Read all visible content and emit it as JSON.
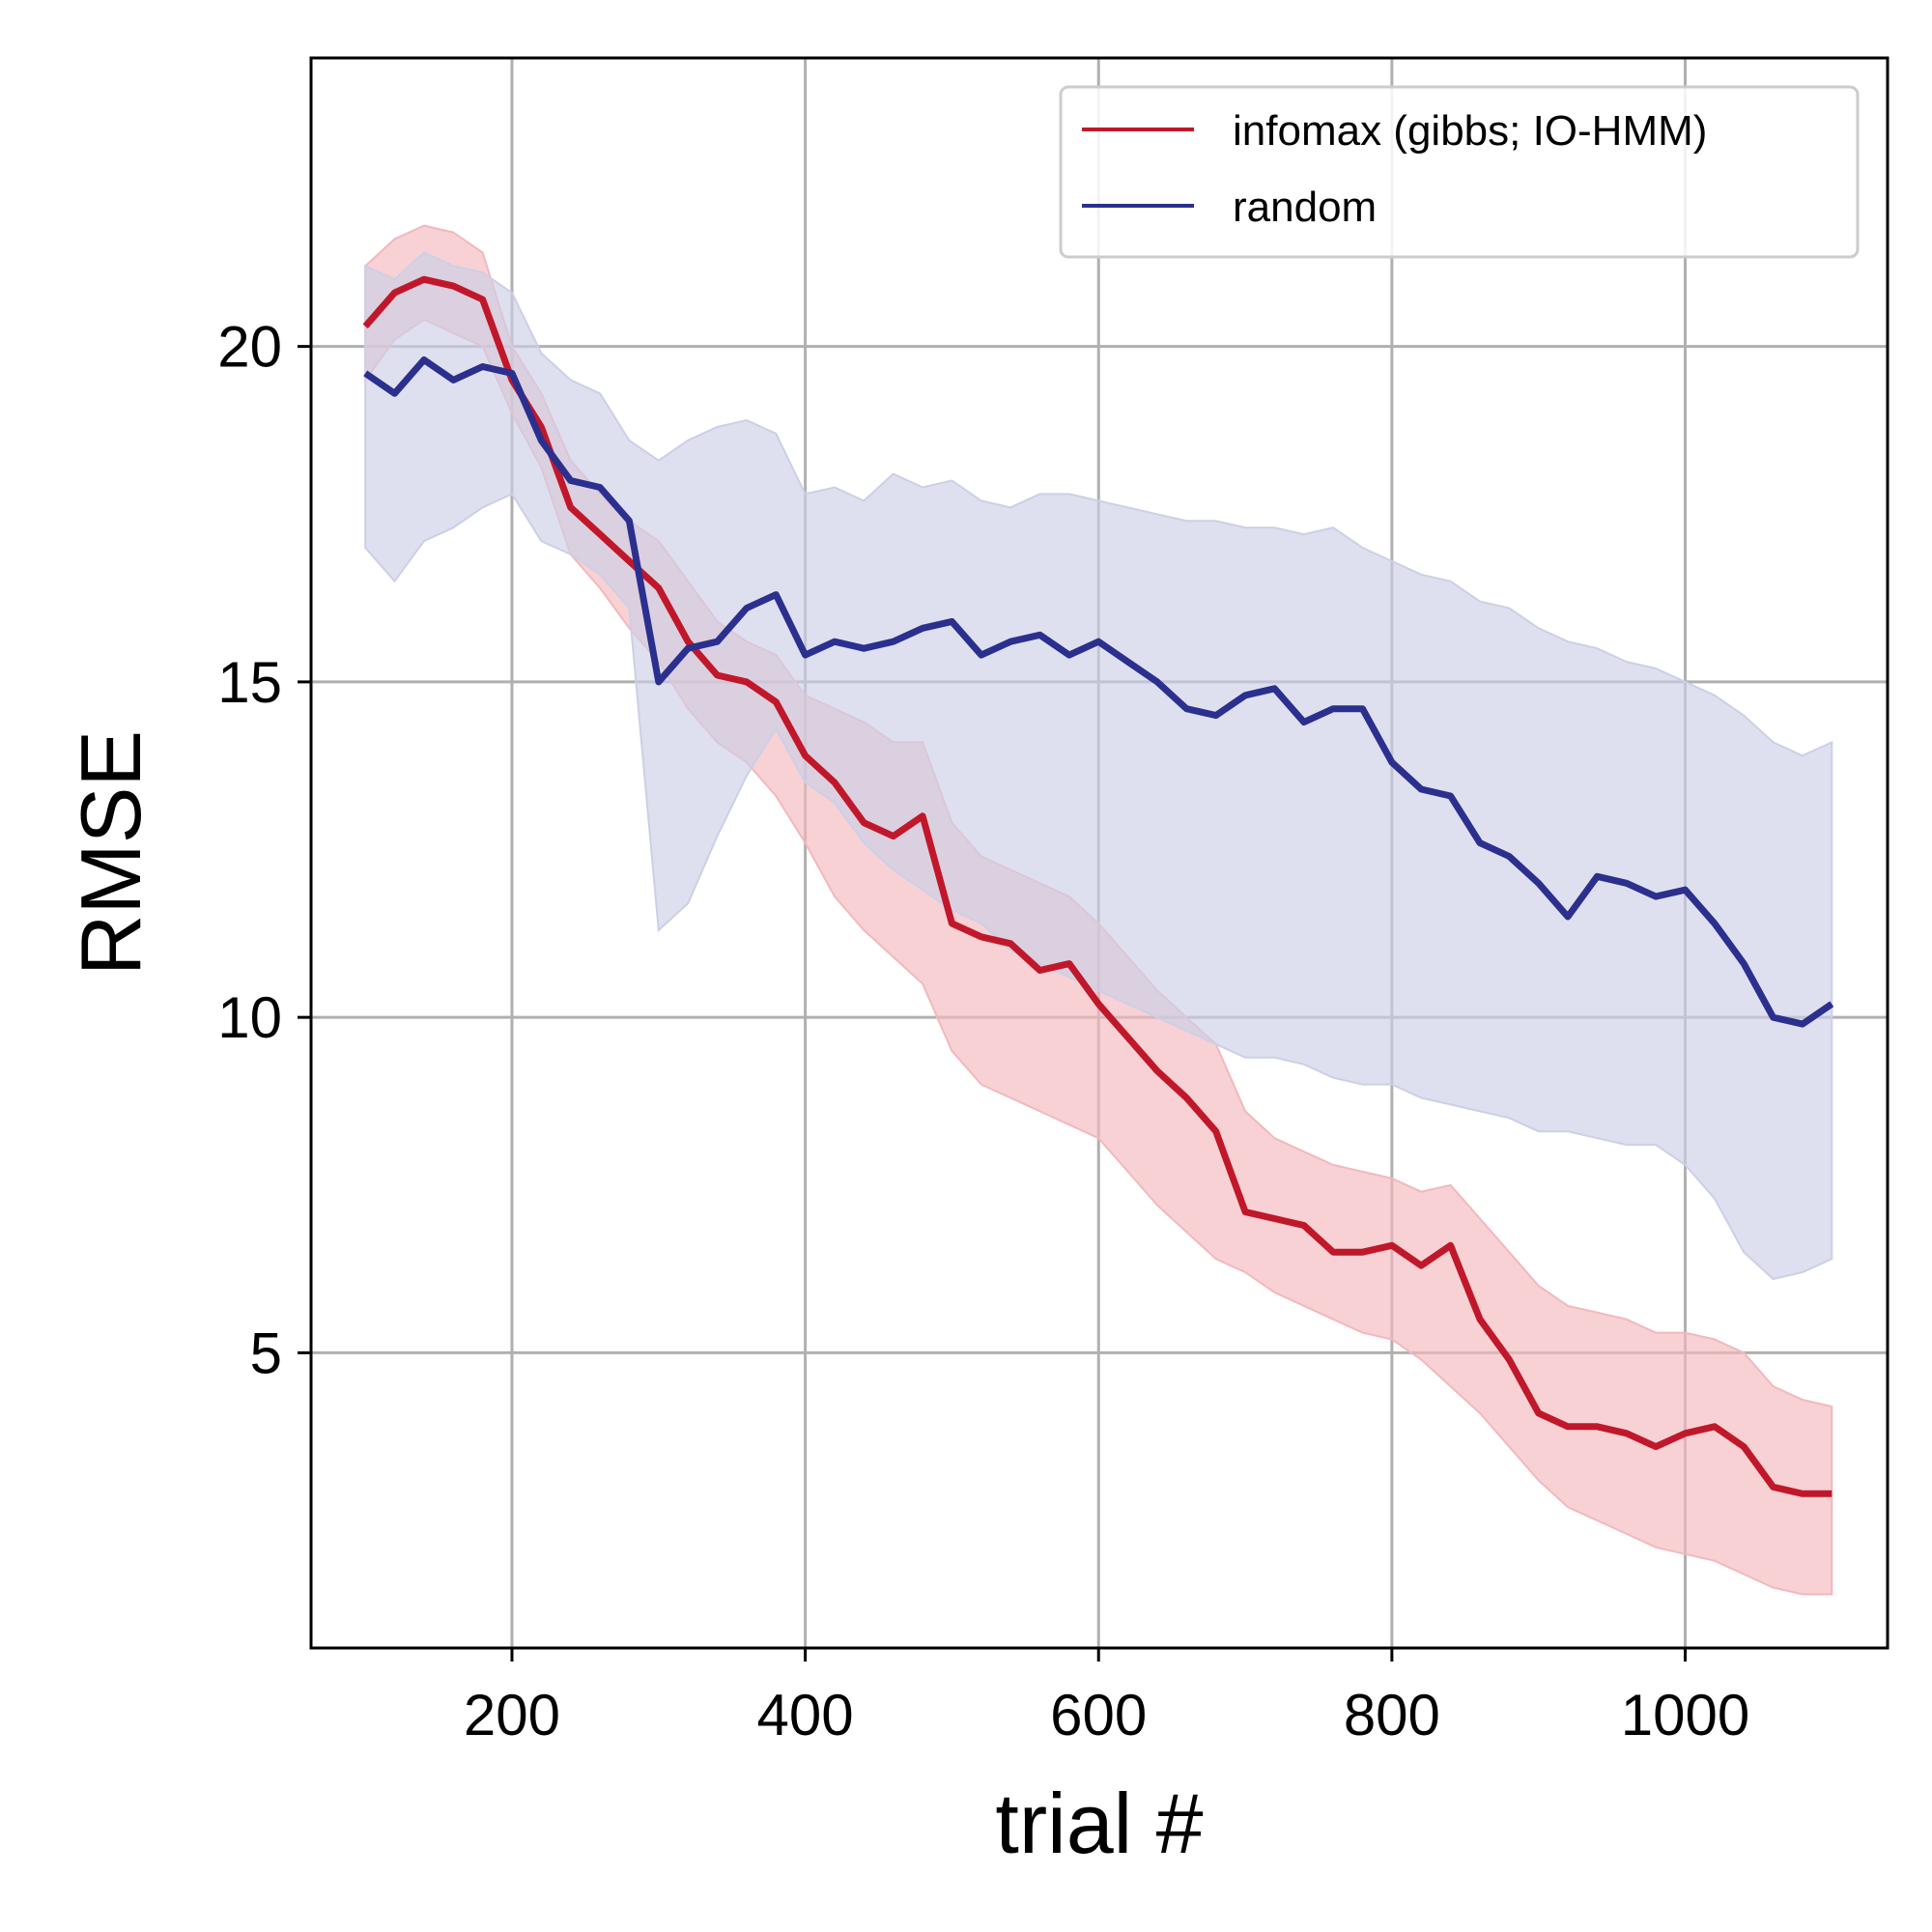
{
  "chart_data": {
    "type": "line",
    "title": "",
    "xlabel": "trial #",
    "ylabel": "RMSE",
    "xlim": [
      63,
      1138
    ],
    "ylim": [
      0.6,
      24.3
    ],
    "xticks": [
      200,
      400,
      600,
      800,
      1000
    ],
    "yticks": [
      5,
      10,
      15,
      20
    ],
    "grid": true,
    "legend_position": "top-right",
    "series": [
      {
        "name": "infomax (gibbs; IO-HMM)",
        "color": "#c0182a",
        "band_color": "#f2b8bd",
        "x": [
          100,
          120,
          140,
          160,
          180,
          200,
          220,
          240,
          260,
          280,
          300,
          320,
          340,
          360,
          380,
          400,
          420,
          440,
          460,
          480,
          500,
          520,
          540,
          560,
          580,
          600,
          620,
          640,
          660,
          680,
          700,
          720,
          740,
          760,
          780,
          800,
          820,
          840,
          860,
          880,
          900,
          920,
          940,
          960,
          980,
          1000,
          1020,
          1040,
          1060,
          1080,
          1100
        ],
        "mean": [
          20.3,
          20.8,
          21.0,
          20.9,
          20.7,
          19.5,
          18.8,
          17.6,
          17.2,
          16.8,
          16.4,
          15.6,
          15.1,
          15.0,
          14.7,
          13.9,
          13.5,
          12.9,
          12.7,
          13.0,
          11.4,
          11.2,
          11.1,
          10.7,
          10.8,
          10.2,
          9.7,
          9.2,
          8.8,
          8.3,
          7.1,
          7.0,
          6.9,
          6.5,
          6.5,
          6.6,
          6.3,
          6.6,
          5.5,
          4.9,
          4.1,
          3.9,
          3.9,
          3.8,
          3.6,
          3.8,
          3.9,
          3.6,
          3.0,
          2.9,
          2.9
        ],
        "lower": [
          19.5,
          20.1,
          20.4,
          20.2,
          20.0,
          19.0,
          18.2,
          16.9,
          16.4,
          15.8,
          15.3,
          14.6,
          14.1,
          13.8,
          13.3,
          12.6,
          11.8,
          11.3,
          10.9,
          10.5,
          9.5,
          9.0,
          8.8,
          8.6,
          8.4,
          8.2,
          7.7,
          7.2,
          6.8,
          6.4,
          6.2,
          5.9,
          5.7,
          5.5,
          5.3,
          5.2,
          4.9,
          4.5,
          4.1,
          3.6,
          3.1,
          2.7,
          2.5,
          2.3,
          2.1,
          2.0,
          1.9,
          1.7,
          1.5,
          1.4,
          1.4
        ],
        "upper": [
          21.2,
          21.6,
          21.8,
          21.7,
          21.4,
          20.0,
          19.3,
          18.3,
          17.8,
          17.4,
          17.1,
          16.5,
          15.9,
          15.6,
          15.4,
          14.8,
          14.6,
          14.4,
          14.1,
          14.1,
          12.9,
          12.4,
          12.2,
          12.0,
          11.8,
          11.4,
          10.9,
          10.4,
          10.0,
          9.6,
          8.6,
          8.2,
          8.0,
          7.8,
          7.7,
          7.6,
          7.4,
          7.5,
          7.0,
          6.5,
          6.0,
          5.7,
          5.6,
          5.5,
          5.3,
          5.3,
          5.2,
          5.0,
          4.5,
          4.3,
          4.2
        ]
      },
      {
        "name": "random",
        "color": "#2b2f8e",
        "band_color": "#cdcfe6",
        "x": [
          100,
          120,
          140,
          160,
          180,
          200,
          220,
          240,
          260,
          280,
          300,
          320,
          340,
          360,
          380,
          400,
          420,
          440,
          460,
          480,
          500,
          520,
          540,
          560,
          580,
          600,
          620,
          640,
          660,
          680,
          700,
          720,
          740,
          760,
          780,
          800,
          820,
          840,
          860,
          880,
          900,
          920,
          940,
          960,
          980,
          1000,
          1020,
          1040,
          1060,
          1080,
          1100
        ],
        "mean": [
          19.6,
          19.3,
          19.8,
          19.5,
          19.7,
          19.6,
          18.6,
          18.0,
          17.9,
          17.4,
          15.0,
          15.5,
          15.6,
          16.1,
          16.3,
          15.4,
          15.6,
          15.5,
          15.6,
          15.8,
          15.9,
          15.4,
          15.6,
          15.7,
          15.4,
          15.6,
          15.3,
          15.0,
          14.6,
          14.5,
          14.8,
          14.9,
          14.4,
          14.6,
          14.6,
          13.8,
          13.4,
          13.3,
          12.6,
          12.4,
          12.0,
          11.5,
          12.1,
          12.0,
          11.8,
          11.9,
          11.4,
          10.8,
          10.0,
          9.9,
          10.2
        ],
        "lower": [
          17.0,
          16.5,
          17.1,
          17.3,
          17.6,
          17.8,
          17.1,
          16.9,
          16.6,
          16.1,
          11.3,
          11.7,
          12.7,
          13.6,
          14.3,
          13.5,
          13.2,
          12.6,
          12.2,
          11.9,
          11.6,
          11.4,
          11.0,
          10.8,
          10.6,
          10.4,
          10.2,
          10.0,
          9.8,
          9.6,
          9.4,
          9.4,
          9.3,
          9.1,
          9.0,
          9.0,
          8.8,
          8.7,
          8.6,
          8.5,
          8.3,
          8.3,
          8.2,
          8.1,
          8.1,
          7.8,
          7.3,
          6.5,
          6.1,
          6.2,
          6.4
        ],
        "upper": [
          21.2,
          21.0,
          21.4,
          21.2,
          21.1,
          20.8,
          19.9,
          19.5,
          19.3,
          18.6,
          18.3,
          18.6,
          18.8,
          18.9,
          18.7,
          17.8,
          17.9,
          17.7,
          18.1,
          17.9,
          18.0,
          17.7,
          17.6,
          17.8,
          17.8,
          17.7,
          17.6,
          17.5,
          17.4,
          17.4,
          17.3,
          17.3,
          17.2,
          17.3,
          17.0,
          16.8,
          16.6,
          16.5,
          16.2,
          16.1,
          15.8,
          15.6,
          15.5,
          15.3,
          15.2,
          15.0,
          14.8,
          14.5,
          14.1,
          13.9,
          14.1
        ]
      }
    ]
  }
}
